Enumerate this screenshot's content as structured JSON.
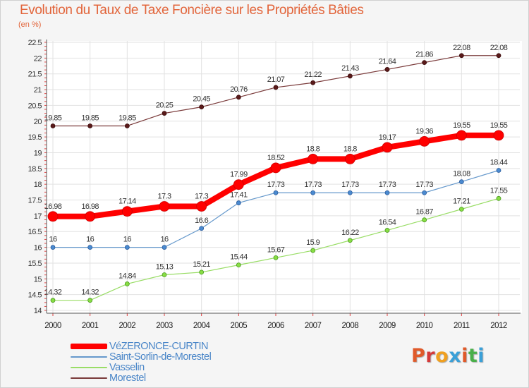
{
  "title": "Evolution du Taux de Taxe Foncière sur les Propriétés Bâties",
  "subtitle": "(en %)",
  "logo": {
    "text": "Proxiti",
    "colors": [
      "#e05a2a",
      "#d43a3a",
      "#f0a020",
      "#3aa0d8",
      "#e05a2a",
      "#4ab04a",
      "#3aa0d8"
    ]
  },
  "chart_data": {
    "type": "line",
    "title": "Evolution du Taux de Taxe Foncière sur les Propriétés Bâties",
    "ylabel": "(en %)",
    "xlabel": "",
    "x": [
      "2000",
      "2001",
      "2002",
      "2003",
      "2004",
      "2005",
      "2006",
      "2007",
      "2008",
      "2009",
      "2010",
      "2011",
      "2012"
    ],
    "ylim": [
      14,
      22.5
    ],
    "yticks": [
      "14",
      "14.5",
      "15",
      "15.5",
      "16",
      "16.5",
      "17",
      "17.5",
      "18",
      "18.5",
      "19",
      "19.5",
      "20",
      "20.5",
      "21",
      "21.5",
      "22",
      "22.5"
    ],
    "grid": true,
    "legend_position": "bottom-left",
    "series": [
      {
        "name": "VéZERONCE-CURTIN",
        "color": "#ff0000",
        "values": [
          16.98,
          16.98,
          17.14,
          17.3,
          17.3,
          17.99,
          18.52,
          18.8,
          18.8,
          19.17,
          19.36,
          19.55,
          19.55
        ],
        "labels": [
          "16.98",
          "16.98",
          "17.14",
          "17.3",
          "17.3",
          "17.99",
          "18.52",
          "18.8",
          "18.8",
          "19.17",
          "19.36",
          "19.55",
          "19.55"
        ]
      },
      {
        "name": "Saint-Sorlin-de-Morestel",
        "color": "#6699cc",
        "values": [
          16,
          16,
          16,
          16,
          16.6,
          17.41,
          17.73,
          17.73,
          17.73,
          17.73,
          17.73,
          18.08,
          18.44
        ],
        "labels": [
          "16",
          "16",
          "16",
          "16",
          "16.6",
          "17.41",
          "17.73",
          "17.73",
          "17.73",
          "17.73",
          "17.73",
          "18.08",
          "18.44"
        ]
      },
      {
        "name": "Vasselin",
        "color": "#99dd66",
        "values": [
          14.32,
          14.32,
          14.84,
          15.13,
          15.21,
          15.44,
          15.67,
          15.9,
          16.22,
          16.54,
          16.87,
          17.21,
          17.55
        ],
        "labels": [
          "14.32",
          "14.32",
          "14.84",
          "15.13",
          "15.21",
          "15.44",
          "15.67",
          "15.9",
          "16.22",
          "16.54",
          "16.87",
          "17.21",
          "17.55"
        ]
      },
      {
        "name": "Morestel",
        "color": "#7a3a3a",
        "values": [
          19.85,
          19.85,
          19.85,
          20.25,
          20.45,
          20.76,
          21.07,
          21.22,
          21.43,
          21.64,
          21.86,
          22.08,
          22.08
        ],
        "labels": [
          "19.85",
          "19.85",
          "19.85",
          "20.25",
          "20.45",
          "20.76",
          "21.07",
          "21.22",
          "21.43",
          "21.64",
          "21.86",
          "22.08",
          "22.08"
        ]
      }
    ]
  }
}
